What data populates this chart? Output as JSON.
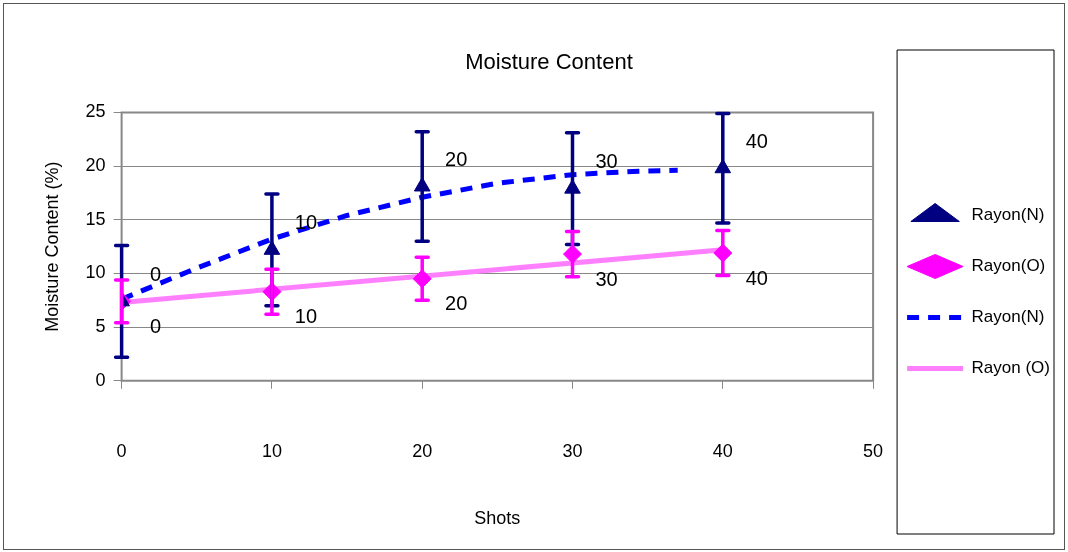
{
  "chart_data": {
    "type": "scatter",
    "title": "Moisture Content",
    "xlabel": "Shots",
    "ylabel": "Moisture Content (%)",
    "x": [
      0,
      10,
      20,
      30,
      40
    ],
    "series": [
      {
        "name": "Rayon(N)",
        "type": "scatter",
        "marker": "triangle",
        "color": "#000080",
        "values": [
          7.4,
          12.2,
          18.1,
          17.9,
          19.8
        ],
        "errors": [
          5.2,
          5.2,
          5.1,
          5.2,
          5.1
        ]
      },
      {
        "name": "Rayon(O)",
        "type": "scatter",
        "marker": "diamond",
        "color": "#ff00ff",
        "values": [
          7.4,
          8.3,
          9.5,
          11.8,
          11.9
        ],
        "errors": [
          2.0,
          2.1,
          2.0,
          2.1,
          2.1
        ]
      },
      {
        "name": "Rayon(N)",
        "type": "line",
        "marker": "none",
        "line_style": "dashed",
        "color": "#0000ff",
        "x": [
          0,
          5,
          10,
          15,
          20,
          25,
          30,
          34,
          37
        ],
        "values": [
          7.6,
          10.5,
          13.2,
          15.4,
          17.1,
          18.4,
          19.2,
          19.5,
          19.6
        ]
      },
      {
        "name": "Rayon (O)",
        "type": "line",
        "marker": "none",
        "line_style": "solid",
        "color": "#ff80ff",
        "x": [
          0,
          40
        ],
        "values": [
          7.3,
          12.2
        ]
      }
    ],
    "annotations": [
      {
        "text": "0",
        "x": 0,
        "y": 7.4
      },
      {
        "text": "0",
        "x": 0,
        "y": 7.4
      },
      {
        "text": "10",
        "x": 10,
        "y": 12.2
      },
      {
        "text": "10",
        "x": 10,
        "y": 8.3
      },
      {
        "text": "20",
        "x": 20,
        "y": 18.1
      },
      {
        "text": "20",
        "x": 20,
        "y": 9.5
      },
      {
        "text": "30",
        "x": 30,
        "y": 17.9
      },
      {
        "text": "30",
        "x": 30,
        "y": 11.8
      },
      {
        "text": "40",
        "x": 40,
        "y": 19.8
      },
      {
        "text": "40",
        "x": 40,
        "y": 11.9
      }
    ],
    "xlim": [
      0,
      50
    ],
    "xticks": [
      0,
      10,
      20,
      30,
      40,
      50
    ],
    "ylim": [
      0,
      25
    ],
    "yticks": [
      0,
      5,
      10,
      15,
      20,
      25
    ],
    "grid": "y",
    "legend": "right"
  }
}
